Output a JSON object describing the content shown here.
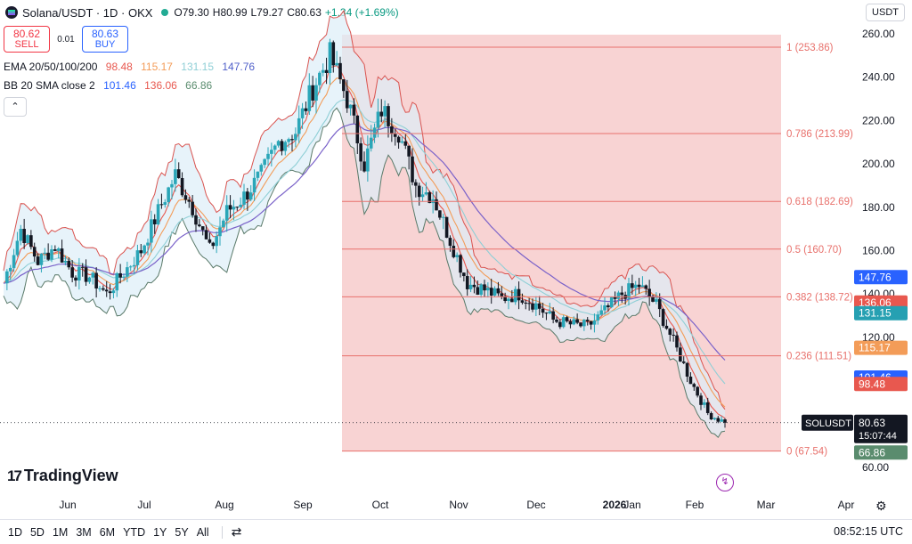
{
  "header": {
    "symbol": "Solana/USDT · 1D · OKX",
    "open": "O79.30",
    "high": "H80.99",
    "low": "L79.27",
    "close": "C80.63",
    "change": "+1.34 (+1.69%)"
  },
  "trade": {
    "sell_price": "80.62",
    "sell_label": "SELL",
    "spread": "0.01",
    "buy_price": "80.63",
    "buy_label": "BUY"
  },
  "indicators": {
    "ema": {
      "label": "EMA 20/50/100/200",
      "v20": "98.48",
      "v50": "115.17",
      "v100": "131.15",
      "v200": "147.76"
    },
    "bb": {
      "label": "BB 20 SMA close 2",
      "upper": "101.46",
      "basis": "136.06",
      "lower": "66.86"
    }
  },
  "currency_selector": "USDT",
  "brand": "TradingView",
  "colors": {
    "up": "#2aa6b8",
    "down": "#131722",
    "fib": "#e8716c",
    "fib_zone": "#f5c4c4",
    "ema20": "#e8584f",
    "ema50": "#f39c58",
    "ema100": "#8fcfd6",
    "ema200": "#7a62c9",
    "bb_band": "#b8c1c6",
    "bb_fill": "#ddeef8"
  },
  "chart_data": {
    "type": "candlestick",
    "title": "Solana/USDT · 1D · OKX",
    "y_axis_ticks": [
      60,
      80,
      100,
      120,
      140,
      160,
      180,
      200,
      220,
      240,
      260
    ],
    "ylim": [
      60,
      270
    ],
    "x_axis_labels": [
      "Jun",
      "Jul",
      "Aug",
      "Sep",
      "Oct",
      "Nov",
      "Dec",
      "2026",
      "Jan",
      "Feb",
      "Mar",
      "Apr"
    ],
    "fibonacci": [
      {
        "level": "1",
        "price": 253.86
      },
      {
        "level": "0.786",
        "price": 213.99
      },
      {
        "level": "0.618",
        "price": 182.69
      },
      {
        "level": "0.5",
        "price": 160.7
      },
      {
        "level": "0.382",
        "price": 138.72
      },
      {
        "level": "0.236",
        "price": 111.51
      },
      {
        "level": "0",
        "price": 67.54
      }
    ],
    "price_tags": [
      {
        "label": "147.76",
        "price": 147.76,
        "color": "#2962ff"
      },
      {
        "label": "136.06",
        "price": 136.06,
        "color": "#e8584f"
      },
      {
        "label": "131.15",
        "price": 131.15,
        "color": "#26a0b2"
      },
      {
        "label": "115.17",
        "price": 115.17,
        "color": "#f39c58"
      },
      {
        "label": "101.46",
        "price": 101.46,
        "color": "#2962ff"
      },
      {
        "label": "98.48",
        "price": 98.48,
        "color": "#e8584f"
      },
      {
        "label": "66.86",
        "price": 66.86,
        "color": "#5a8c6e"
      }
    ],
    "current": {
      "symbol": "SOLUSDT",
      "price": 80.63,
      "countdown": "15:07:44"
    },
    "price_path": [
      [
        "Jun",
        145
      ],
      [
        "Jun",
        170
      ],
      [
        "Jun",
        155
      ],
      [
        "Jun",
        162
      ],
      [
        "Jun",
        150
      ],
      [
        "Jul",
        148
      ],
      [
        "Jul",
        140
      ],
      [
        "Jul",
        150
      ],
      [
        "Jul",
        160
      ],
      [
        "Jul",
        178
      ],
      [
        "Aug",
        195
      ],
      [
        "Aug",
        180
      ],
      [
        "Aug",
        160
      ],
      [
        "Aug",
        178
      ],
      [
        "Aug",
        185
      ],
      [
        "Sep",
        195
      ],
      [
        "Sep",
        210
      ],
      [
        "Sep",
        215
      ],
      [
        "Sep",
        235
      ],
      [
        "Sep",
        250
      ],
      [
        "Oct",
        230
      ],
      [
        "Oct",
        200
      ],
      [
        "Oct",
        225
      ],
      [
        "Oct",
        215
      ],
      [
        "Oct",
        190
      ],
      [
        "Nov",
        185
      ],
      [
        "Nov",
        165
      ],
      [
        "Nov",
        145
      ],
      [
        "Nov",
        142
      ],
      [
        "Nov",
        138
      ],
      [
        "Dec",
        140
      ],
      [
        "Dec",
        135
      ],
      [
        "Dec",
        128
      ],
      [
        "Dec",
        126
      ],
      [
        "Dec",
        125
      ],
      [
        "2026",
        132
      ],
      [
        "Jan",
        140
      ],
      [
        "Jan",
        144
      ],
      [
        "Jan",
        135
      ],
      [
        "Jan",
        118
      ],
      [
        "Feb",
        100
      ],
      [
        "Feb",
        85
      ],
      [
        "Feb",
        80.63
      ]
    ]
  },
  "axis_currency": "USDT",
  "footer": {
    "timeframes": [
      "1D",
      "5D",
      "1M",
      "3M",
      "6M",
      "YTD",
      "1Y",
      "5Y",
      "All"
    ],
    "clock": "08:52:15 UTC"
  }
}
